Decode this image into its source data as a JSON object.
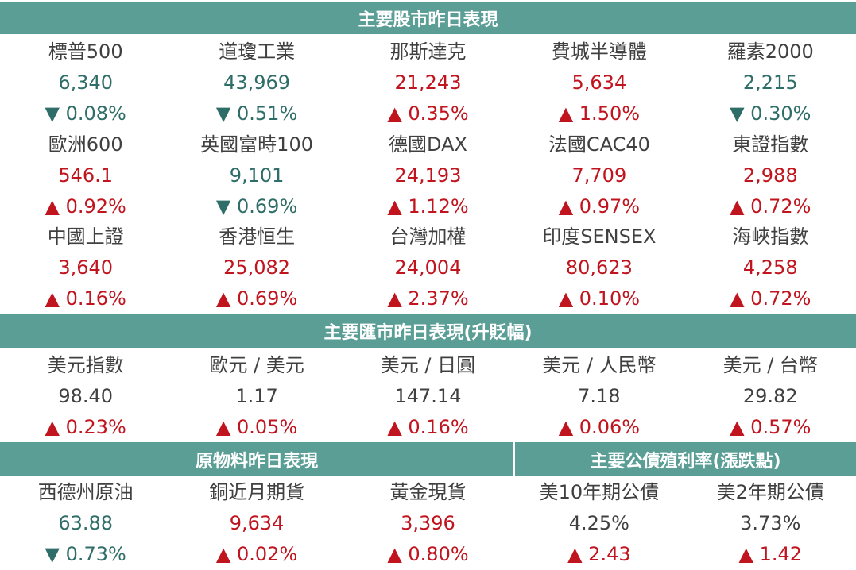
{
  "colors": {
    "header_bg": "#5a9e95",
    "up": "#c0141e",
    "down": "#2f6e68",
    "neutral": "#404040"
  },
  "stocks": {
    "title": "主要股市昨日表現",
    "rows": [
      [
        {
          "name": "標普500",
          "value": "6,340",
          "change": "▼ 0.08%",
          "dir": "down"
        },
        {
          "name": "道瓊工業",
          "value": "43,969",
          "change": "▼ 0.51%",
          "dir": "down"
        },
        {
          "name": "那斯達克",
          "value": "21,243",
          "change": "▲ 0.35%",
          "dir": "up"
        },
        {
          "name": "費城半導體",
          "value": "5,634",
          "change": "▲ 1.50%",
          "dir": "up"
        },
        {
          "name": "羅素2000",
          "value": "2,215",
          "change": "▼ 0.30%",
          "dir": "down"
        }
      ],
      [
        {
          "name": "歐洲600",
          "value": "546.1",
          "change": "▲ 0.92%",
          "dir": "up"
        },
        {
          "name": "英國富時100",
          "value": "9,101",
          "change": "▼ 0.69%",
          "dir": "down"
        },
        {
          "name": "德國DAX",
          "value": "24,193",
          "change": "▲ 1.12%",
          "dir": "up"
        },
        {
          "name": "法國CAC40",
          "value": "7,709",
          "change": "▲ 0.97%",
          "dir": "up"
        },
        {
          "name": "東證指數",
          "value": "2,988",
          "change": "▲ 0.72%",
          "dir": "up"
        }
      ],
      [
        {
          "name": "中國上證",
          "value": "3,640",
          "change": "▲ 0.16%",
          "dir": "up"
        },
        {
          "name": "香港恒生",
          "value": "25,082",
          "change": "▲ 0.69%",
          "dir": "up"
        },
        {
          "name": "台灣加權",
          "value": "24,004",
          "change": "▲ 2.37%",
          "dir": "up"
        },
        {
          "name": "印度SENSEX",
          "value": "80,623",
          "change": "▲ 0.10%",
          "dir": "up"
        },
        {
          "name": "海峽指數",
          "value": "4,258",
          "change": "▲ 0.72%",
          "dir": "up"
        }
      ]
    ]
  },
  "fx": {
    "title": "主要匯市昨日表現(升貶幅)",
    "items": [
      {
        "name": "美元指數",
        "value": "98.40",
        "change": "▲ 0.23%",
        "dir": "up"
      },
      {
        "name": "歐元 / 美元",
        "value": "1.17",
        "change": "▲ 0.05%",
        "dir": "up"
      },
      {
        "name": "美元 / 日圓",
        "value": "147.14",
        "change": "▲ 0.16%",
        "dir": "up"
      },
      {
        "name": "美元 / 人民幣",
        "value": "7.18",
        "change": "▲ 0.06%",
        "dir": "up"
      },
      {
        "name": "美元 / 台幣",
        "value": "29.82",
        "change": "▲ 0.57%",
        "dir": "up"
      }
    ]
  },
  "commodities": {
    "title": "原物料昨日表現",
    "items": [
      {
        "name": "西德州原油",
        "value": "63.88",
        "change": "▼ 0.73%",
        "dir": "down"
      },
      {
        "name": "銅近月期貨",
        "value": "9,634",
        "change": "▲ 0.02%",
        "dir": "up"
      },
      {
        "name": "黃金現貨",
        "value": "3,396",
        "change": "▲ 0.80%",
        "dir": "up"
      }
    ]
  },
  "bonds": {
    "title": "主要公債殖利率(漲跌點)",
    "items": [
      {
        "name": "美10年期公債",
        "value": "4.25%",
        "change": "▲ 2.43",
        "dir": "up"
      },
      {
        "name": "美2年期公債",
        "value": "3.73%",
        "change": "▲ 1.42",
        "dir": "up"
      }
    ]
  }
}
